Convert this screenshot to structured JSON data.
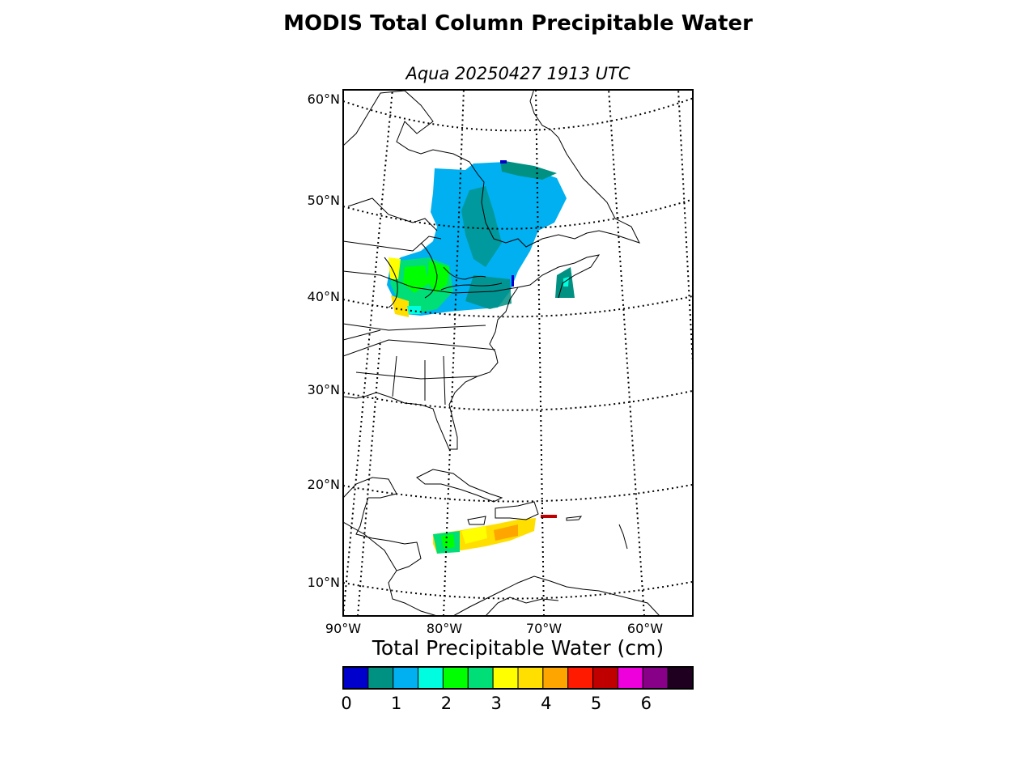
{
  "title": "MODIS Total Column Precipitable Water",
  "subtitle": "Aqua 20250427 1913 UTC",
  "map": {
    "lat_labels": [
      "60°N",
      "50°N",
      "40°N",
      "30°N",
      "20°N",
      "10°N"
    ],
    "lon_labels": [
      "90°W",
      "80°W",
      "70°W",
      "60°W"
    ],
    "extent": {
      "lon_min": -90,
      "lon_max": -55,
      "lat_min": 7,
      "lat_max": 61
    }
  },
  "colorbar": {
    "label": "Total Precipitable Water (cm)",
    "ticks": [
      "0",
      "1",
      "2",
      "3",
      "4",
      "5",
      "6"
    ],
    "range": [
      0,
      7
    ],
    "colors": [
      "#0000cd",
      "#009182",
      "#00b0f0",
      "#00fde0",
      "#00ff00",
      "#00de78",
      "#ffff00",
      "#ffdf00",
      "#ffa500",
      "#ff1a00",
      "#c00000",
      "#ee00dd",
      "#880088",
      "#200020"
    ]
  }
}
